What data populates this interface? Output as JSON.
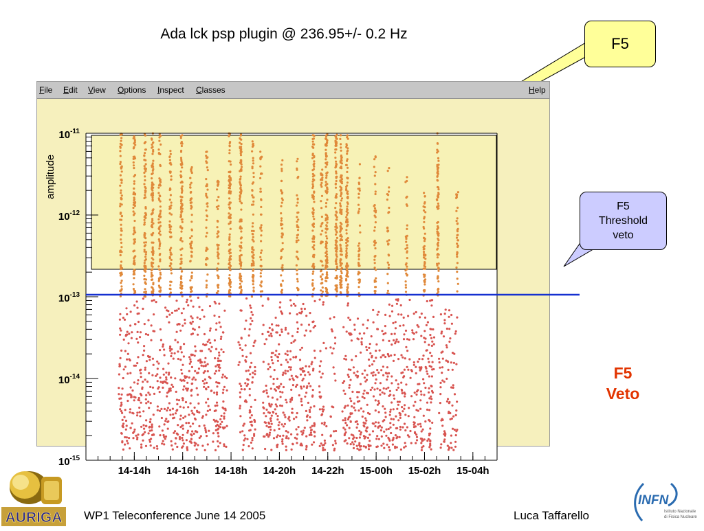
{
  "slide": {
    "title": "Ada lck psp plugin @ 236.95+/- 0.2 Hz",
    "footer_left": "WP1 Teleconference June 14 2005",
    "footer_right": "Luca Taffarello",
    "auriga_logo_text": "AURIGA",
    "infn_logo_text": "INFN",
    "infn_logo_subtext": [
      "Istituto Nazionale",
      "di Fisica Nucleare"
    ]
  },
  "callouts": {
    "f5": "F5",
    "threshold": [
      "F5",
      "Threshold",
      "veto"
    ],
    "veto": [
      "F5",
      "Veto"
    ]
  },
  "menubar": {
    "items": [
      {
        "first": "F",
        "rest": "ile"
      },
      {
        "first": "E",
        "rest": "dit"
      },
      {
        "first": "V",
        "rest": "iew"
      },
      {
        "first": "O",
        "rest": "ptions"
      },
      {
        "first": "I",
        "rest": "nspect"
      },
      {
        "first": "C",
        "rest": "lasses"
      }
    ],
    "help": {
      "first": "H",
      "rest": "elp"
    }
  },
  "colors": {
    "points_above": "#e0893a",
    "points_below": "#d85450",
    "threshold_line": "#1530d0",
    "veto_band": "#f7f2b6",
    "canvas_bg": "#f6f0bd",
    "callout_yellow": "#ffff99",
    "callout_blue": "#ccccff",
    "veto_text": "#e23400"
  },
  "chart_data": {
    "type": "scatter",
    "title": "",
    "ylabel": "amplitude",
    "xlabel": "",
    "yscale": "log",
    "ylim": [
      1e-15,
      1e-11
    ],
    "y_tick_labels": [
      {
        "base": "10",
        "exp": "-11",
        "value": 1e-11
      },
      {
        "base": "10",
        "exp": "-12",
        "value": 1e-12
      },
      {
        "base": "10",
        "exp": "-13",
        "value": 1e-13
      },
      {
        "base": "10",
        "exp": "-14",
        "value": 1e-14
      },
      {
        "base": "10",
        "exp": "-15",
        "value": 1e-15
      }
    ],
    "x_unit": "hour since 14-00h",
    "xlim": [
      12.0,
      29.0
    ],
    "x_ticks": [
      {
        "label": "14-14h",
        "value": 14
      },
      {
        "label": "14-16h",
        "value": 16
      },
      {
        "label": "14-18h",
        "value": 18
      },
      {
        "label": "14-20h",
        "value": 20
      },
      {
        "label": "14-22h",
        "value": 22
      },
      {
        "label": "15-00h",
        "value": 24
      },
      {
        "label": "15-02h",
        "value": 26
      },
      {
        "label": "15-04h",
        "value": 28
      }
    ],
    "threshold": 1e-13,
    "grid": false,
    "series_below": {
      "segments": [
        {
          "x": [
            13.35,
            17.85
          ],
          "density": 1.0
        },
        {
          "x": [
            18.3,
            19.0
          ],
          "density": 1.0
        },
        {
          "x": [
            19.3,
            21.5
          ],
          "density": 1.0
        },
        {
          "x": [
            21.65,
            21.95
          ],
          "density": 0.9
        },
        {
          "x": [
            22.1,
            22.35
          ],
          "density": 0.7
        },
        {
          "x": [
            22.6,
            26.4
          ],
          "density": 1.0
        },
        {
          "x": [
            26.6,
            27.35
          ],
          "density": 0.9
        }
      ]
    },
    "series_above": {
      "columns": [
        {
          "x": 13.45,
          "top": 1e-11,
          "density": 0.7
        },
        {
          "x": 14.0,
          "top": 1e-11,
          "density": 0.7
        },
        {
          "x": 14.45,
          "top": 1e-11,
          "density": 0.8
        },
        {
          "x": 14.75,
          "top": 1e-11,
          "density": 0.9
        },
        {
          "x": 15.05,
          "top": 1e-11,
          "density": 0.7
        },
        {
          "x": 15.5,
          "top": 8e-12,
          "density": 0.6
        },
        {
          "x": 15.95,
          "top": 1e-11,
          "density": 0.8
        },
        {
          "x": 16.35,
          "top": 5e-12,
          "density": 0.5
        },
        {
          "x": 17.0,
          "top": 6e-12,
          "density": 0.4
        },
        {
          "x": 17.45,
          "top": 3e-12,
          "density": 0.4
        },
        {
          "x": 17.95,
          "top": 1e-11,
          "density": 1.0
        },
        {
          "x": 18.4,
          "top": 1e-11,
          "density": 1.0
        },
        {
          "x": 18.9,
          "top": 8e-12,
          "density": 0.6
        },
        {
          "x": 19.25,
          "top": 6e-12,
          "density": 0.4
        },
        {
          "x": 20.1,
          "top": 5e-12,
          "density": 0.4
        },
        {
          "x": 20.75,
          "top": 5e-12,
          "density": 0.4
        },
        {
          "x": 21.4,
          "top": 1e-11,
          "density": 0.8
        },
        {
          "x": 21.75,
          "top": 4e-12,
          "density": 0.4
        },
        {
          "x": 21.95,
          "top": 1e-11,
          "density": 1.0
        },
        {
          "x": 22.35,
          "top": 1e-11,
          "density": 0.9
        },
        {
          "x": 22.55,
          "top": 1e-11,
          "density": 1.0
        },
        {
          "x": 22.8,
          "top": 1e-11,
          "density": 0.9
        },
        {
          "x": 23.3,
          "top": 5e-12,
          "density": 0.4
        },
        {
          "x": 23.95,
          "top": 6e-12,
          "density": 0.4
        },
        {
          "x": 24.5,
          "top": 4e-12,
          "density": 0.3
        },
        {
          "x": 25.25,
          "top": 3e-12,
          "density": 0.3
        },
        {
          "x": 26.0,
          "top": 2e-12,
          "density": 0.5
        },
        {
          "x": 26.55,
          "top": 1e-11,
          "density": 0.8
        },
        {
          "x": 27.35,
          "top": 2e-12,
          "density": 0.3
        }
      ]
    }
  }
}
